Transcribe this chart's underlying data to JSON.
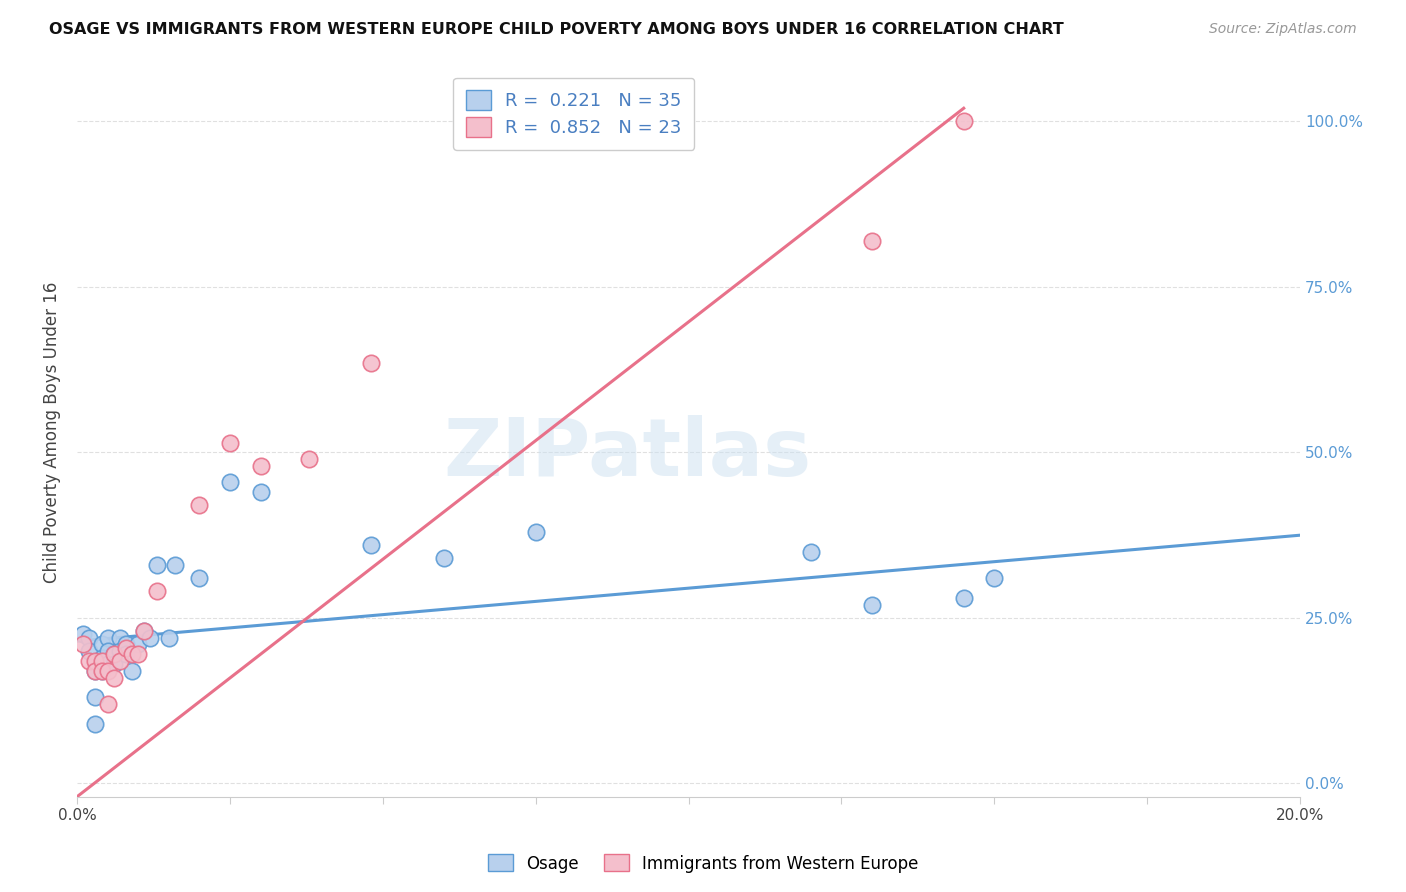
{
  "title": "OSAGE VS IMMIGRANTS FROM WESTERN EUROPE CHILD POVERTY AMONG BOYS UNDER 16 CORRELATION CHART",
  "source": "Source: ZipAtlas.com",
  "ylabel": "Child Poverty Among Boys Under 16",
  "xlim": [
    0.0,
    0.2
  ],
  "ylim": [
    -0.02,
    1.08
  ],
  "plot_ylim": [
    0.0,
    1.0
  ],
  "right_yticks": [
    0.0,
    0.25,
    0.5,
    0.75,
    1.0
  ],
  "right_yticklabels": [
    "0.0%",
    "25.0%",
    "50.0%",
    "75.0%",
    "100.0%"
  ],
  "xticks": [
    0.0,
    0.025,
    0.05,
    0.075,
    0.1,
    0.125,
    0.15,
    0.175,
    0.2
  ],
  "xticklabels": [
    "0.0%",
    "",
    "",
    "",
    "",
    "",
    "",
    "",
    "20.0%"
  ],
  "background_color": "#ffffff",
  "grid_color": "#e0e0e0",
  "watermark": "ZIPatlas",
  "series1_color": "#b8d0ed",
  "series1_line_color": "#5b9bd5",
  "series2_color": "#f4bfcc",
  "series2_line_color": "#e8718a",
  "series1_label": "Osage",
  "series2_label": "Immigrants from Western Europe",
  "osage_x": [
    0.001,
    0.002,
    0.002,
    0.003,
    0.003,
    0.003,
    0.004,
    0.004,
    0.004,
    0.005,
    0.005,
    0.005,
    0.006,
    0.006,
    0.007,
    0.007,
    0.008,
    0.008,
    0.009,
    0.01,
    0.011,
    0.012,
    0.013,
    0.015,
    0.016,
    0.02,
    0.025,
    0.03,
    0.048,
    0.06,
    0.075,
    0.12,
    0.13,
    0.145,
    0.15
  ],
  "osage_y": [
    0.225,
    0.22,
    0.2,
    0.17,
    0.13,
    0.09,
    0.21,
    0.19,
    0.17,
    0.22,
    0.2,
    0.18,
    0.195,
    0.18,
    0.22,
    0.2,
    0.21,
    0.195,
    0.17,
    0.21,
    0.23,
    0.22,
    0.33,
    0.22,
    0.33,
    0.31,
    0.455,
    0.44,
    0.36,
    0.34,
    0.38,
    0.35,
    0.27,
    0.28,
    0.31
  ],
  "immig_x": [
    0.001,
    0.002,
    0.003,
    0.003,
    0.004,
    0.004,
    0.005,
    0.005,
    0.006,
    0.006,
    0.007,
    0.008,
    0.009,
    0.01,
    0.011,
    0.013,
    0.02,
    0.025,
    0.03,
    0.038,
    0.048,
    0.13,
    0.145
  ],
  "immig_y": [
    0.21,
    0.185,
    0.185,
    0.17,
    0.185,
    0.17,
    0.17,
    0.12,
    0.195,
    0.16,
    0.185,
    0.205,
    0.195,
    0.195,
    0.23,
    0.29,
    0.42,
    0.515,
    0.48,
    0.49,
    0.635,
    0.82,
    1.0
  ],
  "blue_line_x": [
    0.0,
    0.2
  ],
  "blue_line_y": [
    0.215,
    0.375
  ],
  "pink_line_x": [
    0.0,
    0.145
  ],
  "pink_line_y": [
    -0.02,
    1.02
  ]
}
